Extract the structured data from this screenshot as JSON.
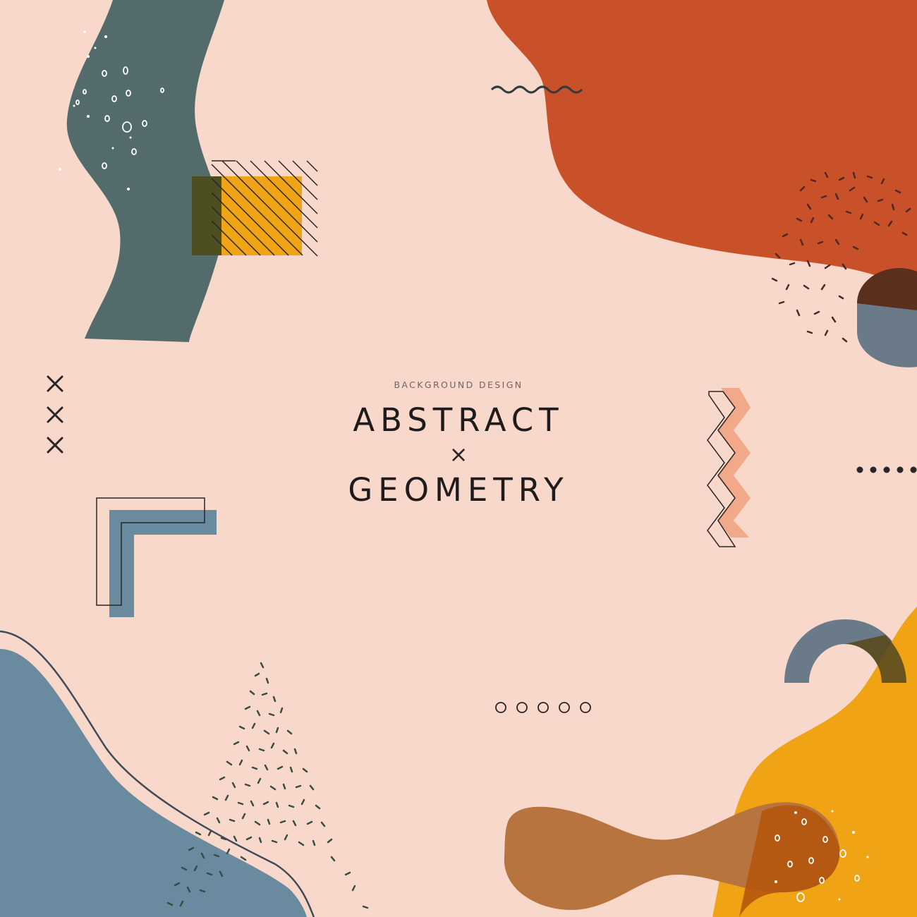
{
  "poster": {
    "subtitle": "BACKGROUND DESIGN",
    "title_line1": "ABSTRACT",
    "separator": "×",
    "title_line2": "GEOMETRY"
  },
  "colors": {
    "background": "#f7d8cb",
    "rust": "#c9512a",
    "slate": "#536b6b",
    "steel_blue": "#6a8aa0",
    "mustard": "#f0a315",
    "brown": "#b8743f",
    "dark_brown": "#5a2f1c",
    "gray_blue": "#6b7a88",
    "peach": "#f2a98a",
    "ink": "#1f1b1c"
  }
}
